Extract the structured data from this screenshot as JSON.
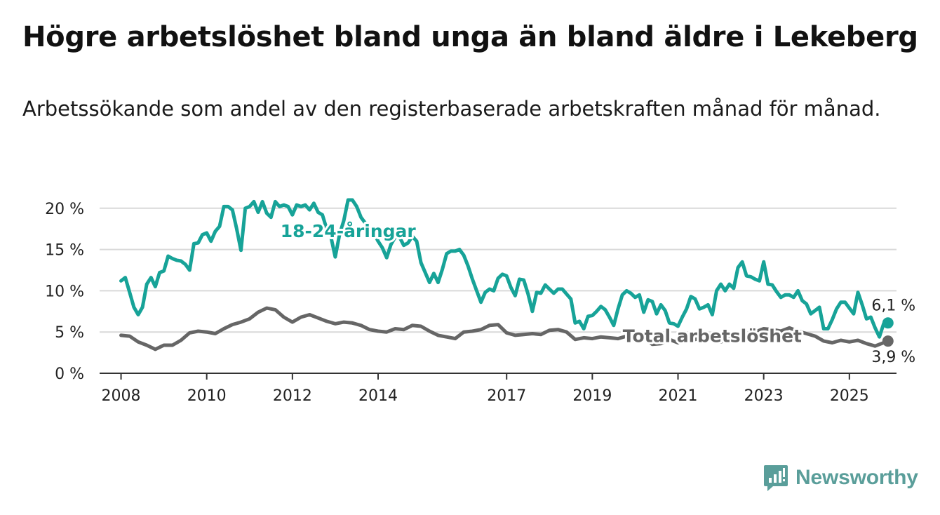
{
  "title": "Högre arbetslöshet bland unga än bland äldre i Lekeberg",
  "subtitle": "Arbetssökande som andel av den registerbaserade arbetskraften månad för månad.",
  "brand": {
    "name": "Newsworthy",
    "icon": "newsworthy-logo-icon"
  },
  "colors": {
    "youth": "#17a398",
    "total": "#666666",
    "grid": "#d9d9d9",
    "axis": "#333333",
    "brand": "#5a9e9a"
  },
  "chart_data": {
    "type": "line",
    "title": "Högre arbetslöshet bland unga än bland äldre i Lekeberg",
    "subtitle": "Arbetssökande som andel av den registerbaserade arbetskraften månad för månad.",
    "x_unit": "year (decimal, monthly observations)",
    "xlim": [
      2007.5,
      2026.1
    ],
    "ylim": [
      0,
      21
    ],
    "y_ticks": [
      0,
      5,
      10,
      15,
      20
    ],
    "y_tick_labels": [
      "0 %",
      "5 %",
      "10 %",
      "15 %",
      "20 %"
    ],
    "x_ticks": [
      2008,
      2010,
      2012,
      2014,
      2017,
      2019,
      2021,
      2023,
      2025
    ],
    "x_tick_labels": [
      "2008",
      "2010",
      "2012",
      "2014",
      "2017",
      "2019",
      "2021",
      "2023",
      "2025"
    ],
    "grid": "horizontal",
    "legend": "none (direct labels)",
    "series": [
      {
        "name": "18-24-åringar",
        "color": "#17a398",
        "label_at": [
          2013.3,
          16.5
        ],
        "end_value_label": "6,1 %",
        "points": [
          [
            2008.0,
            11.2
          ],
          [
            2008.1,
            11.6
          ],
          [
            2008.2,
            9.8
          ],
          [
            2008.3,
            8.0
          ],
          [
            2008.4,
            7.1
          ],
          [
            2008.5,
            8.0
          ],
          [
            2008.6,
            10.8
          ],
          [
            2008.7,
            11.6
          ],
          [
            2008.8,
            10.5
          ],
          [
            2008.9,
            12.2
          ],
          [
            2009.0,
            12.4
          ],
          [
            2009.1,
            14.2
          ],
          [
            2009.2,
            13.9
          ],
          [
            2009.3,
            13.7
          ],
          [
            2009.4,
            13.6
          ],
          [
            2009.5,
            13.2
          ],
          [
            2009.6,
            12.5
          ],
          [
            2009.7,
            15.7
          ],
          [
            2009.8,
            15.8
          ],
          [
            2009.9,
            16.8
          ],
          [
            2010.0,
            17.0
          ],
          [
            2010.1,
            16.0
          ],
          [
            2010.2,
            17.2
          ],
          [
            2010.3,
            17.8
          ],
          [
            2010.4,
            20.2
          ],
          [
            2010.5,
            20.2
          ],
          [
            2010.6,
            19.8
          ],
          [
            2010.7,
            17.5
          ],
          [
            2010.8,
            14.9
          ],
          [
            2010.9,
            20.0
          ],
          [
            2011.0,
            20.2
          ],
          [
            2011.1,
            20.8
          ],
          [
            2011.2,
            19.5
          ],
          [
            2011.3,
            20.8
          ],
          [
            2011.4,
            19.4
          ],
          [
            2011.5,
            18.9
          ],
          [
            2011.6,
            20.8
          ],
          [
            2011.7,
            20.2
          ],
          [
            2011.8,
            20.4
          ],
          [
            2011.9,
            20.2
          ],
          [
            2012.0,
            19.2
          ],
          [
            2012.1,
            20.4
          ],
          [
            2012.2,
            20.2
          ],
          [
            2012.3,
            20.4
          ],
          [
            2012.4,
            19.8
          ],
          [
            2012.5,
            20.6
          ],
          [
            2012.6,
            19.5
          ],
          [
            2012.7,
            19.2
          ],
          [
            2012.8,
            17.5
          ],
          [
            2012.9,
            16.5
          ],
          [
            2013.0,
            14.1
          ],
          [
            2013.1,
            16.8
          ],
          [
            2013.2,
            18.5
          ],
          [
            2013.3,
            21.0
          ],
          [
            2013.4,
            21.0
          ],
          [
            2013.5,
            20.2
          ],
          [
            2013.6,
            18.9
          ],
          [
            2013.7,
            18.2
          ],
          [
            2013.8,
            17.5
          ],
          [
            2013.9,
            17.0
          ],
          [
            2014.0,
            16.0
          ],
          [
            2014.1,
            15.2
          ],
          [
            2014.2,
            14.0
          ],
          [
            2014.3,
            15.6
          ],
          [
            2014.4,
            16.5
          ],
          [
            2014.5,
            16.5
          ],
          [
            2014.6,
            15.5
          ],
          [
            2014.7,
            15.8
          ],
          [
            2014.8,
            16.6
          ],
          [
            2014.9,
            16.0
          ],
          [
            2015.0,
            13.4
          ],
          [
            2015.1,
            12.2
          ],
          [
            2015.2,
            11.0
          ],
          [
            2015.3,
            12.1
          ],
          [
            2015.4,
            11.0
          ],
          [
            2015.5,
            12.6
          ],
          [
            2015.6,
            14.5
          ],
          [
            2015.7,
            14.8
          ],
          [
            2015.8,
            14.8
          ],
          [
            2015.9,
            15.0
          ],
          [
            2016.0,
            14.3
          ],
          [
            2016.1,
            13.0
          ],
          [
            2016.2,
            11.4
          ],
          [
            2016.3,
            10.0
          ],
          [
            2016.4,
            8.6
          ],
          [
            2016.5,
            9.8
          ],
          [
            2016.6,
            10.2
          ],
          [
            2016.7,
            10.0
          ],
          [
            2016.8,
            11.5
          ],
          [
            2016.9,
            12.0
          ],
          [
            2017.0,
            11.8
          ],
          [
            2017.1,
            10.4
          ],
          [
            2017.2,
            9.4
          ],
          [
            2017.3,
            11.4
          ],
          [
            2017.4,
            11.3
          ],
          [
            2017.5,
            9.6
          ],
          [
            2017.6,
            7.5
          ],
          [
            2017.7,
            9.8
          ],
          [
            2017.8,
            9.7
          ],
          [
            2017.9,
            10.7
          ],
          [
            2018.0,
            10.2
          ],
          [
            2018.1,
            9.7
          ],
          [
            2018.2,
            10.2
          ],
          [
            2018.3,
            10.2
          ],
          [
            2018.4,
            9.6
          ],
          [
            2018.5,
            9.0
          ],
          [
            2018.6,
            6.1
          ],
          [
            2018.7,
            6.3
          ],
          [
            2018.8,
            5.4
          ],
          [
            2018.9,
            6.9
          ],
          [
            2019.0,
            7.0
          ],
          [
            2019.1,
            7.5
          ],
          [
            2019.2,
            8.1
          ],
          [
            2019.3,
            7.7
          ],
          [
            2019.4,
            6.8
          ],
          [
            2019.5,
            5.8
          ],
          [
            2019.6,
            7.8
          ],
          [
            2019.7,
            9.5
          ],
          [
            2019.8,
            10.0
          ],
          [
            2019.9,
            9.7
          ],
          [
            2020.0,
            9.2
          ],
          [
            2020.1,
            9.5
          ],
          [
            2020.2,
            7.4
          ],
          [
            2020.3,
            8.9
          ],
          [
            2020.4,
            8.7
          ],
          [
            2020.5,
            7.2
          ],
          [
            2020.6,
            8.3
          ],
          [
            2020.7,
            7.6
          ],
          [
            2020.8,
            6.1
          ],
          [
            2020.9,
            6.0
          ],
          [
            2021.0,
            5.7
          ],
          [
            2021.1,
            6.8
          ],
          [
            2021.2,
            7.8
          ],
          [
            2021.3,
            9.3
          ],
          [
            2021.4,
            9.0
          ],
          [
            2021.5,
            7.8
          ],
          [
            2021.6,
            8.0
          ],
          [
            2021.7,
            8.3
          ],
          [
            2021.8,
            7.1
          ],
          [
            2021.9,
            10.0
          ],
          [
            2022.0,
            10.8
          ],
          [
            2022.1,
            10.0
          ],
          [
            2022.2,
            10.8
          ],
          [
            2022.3,
            10.3
          ],
          [
            2022.4,
            12.8
          ],
          [
            2022.5,
            13.5
          ],
          [
            2022.6,
            11.8
          ],
          [
            2022.7,
            11.7
          ],
          [
            2022.8,
            11.4
          ],
          [
            2022.9,
            11.2
          ],
          [
            2023.0,
            13.5
          ],
          [
            2023.1,
            10.8
          ],
          [
            2023.2,
            10.7
          ],
          [
            2023.3,
            9.9
          ],
          [
            2023.4,
            9.2
          ],
          [
            2023.5,
            9.5
          ],
          [
            2023.6,
            9.5
          ],
          [
            2023.7,
            9.2
          ],
          [
            2023.8,
            10.0
          ],
          [
            2023.9,
            8.8
          ],
          [
            2024.0,
            8.4
          ],
          [
            2024.1,
            7.2
          ],
          [
            2024.2,
            7.6
          ],
          [
            2024.3,
            8.0
          ],
          [
            2024.4,
            5.4
          ],
          [
            2024.5,
            5.4
          ],
          [
            2024.6,
            6.5
          ],
          [
            2024.7,
            7.8
          ],
          [
            2024.8,
            8.6
          ],
          [
            2024.9,
            8.6
          ],
          [
            2025.0,
            7.9
          ],
          [
            2025.1,
            7.2
          ],
          [
            2025.2,
            9.8
          ],
          [
            2025.3,
            8.3
          ],
          [
            2025.4,
            6.6
          ],
          [
            2025.5,
            6.8
          ],
          [
            2025.6,
            5.5
          ],
          [
            2025.7,
            4.4
          ],
          [
            2025.8,
            6.0
          ],
          [
            2025.9,
            6.1
          ]
        ]
      },
      {
        "name": "Total arbetslöshet",
        "color": "#666666",
        "label_at": [
          2021.8,
          3.8
        ],
        "end_value_label": "3,9 %",
        "points": [
          [
            2008.0,
            4.6
          ],
          [
            2008.2,
            4.5
          ],
          [
            2008.4,
            3.8
          ],
          [
            2008.6,
            3.4
          ],
          [
            2008.8,
            2.9
          ],
          [
            2009.0,
            3.4
          ],
          [
            2009.2,
            3.4
          ],
          [
            2009.4,
            4.0
          ],
          [
            2009.6,
            4.9
          ],
          [
            2009.8,
            5.1
          ],
          [
            2010.0,
            5.0
          ],
          [
            2010.2,
            4.8
          ],
          [
            2010.4,
            5.4
          ],
          [
            2010.6,
            5.9
          ],
          [
            2010.8,
            6.2
          ],
          [
            2011.0,
            6.6
          ],
          [
            2011.2,
            7.4
          ],
          [
            2011.4,
            7.9
          ],
          [
            2011.6,
            7.7
          ],
          [
            2011.8,
            6.8
          ],
          [
            2012.0,
            6.2
          ],
          [
            2012.2,
            6.8
          ],
          [
            2012.4,
            7.1
          ],
          [
            2012.6,
            6.7
          ],
          [
            2012.8,
            6.3
          ],
          [
            2013.0,
            6.0
          ],
          [
            2013.2,
            6.2
          ],
          [
            2013.4,
            6.1
          ],
          [
            2013.6,
            5.8
          ],
          [
            2013.8,
            5.3
          ],
          [
            2014.0,
            5.1
          ],
          [
            2014.2,
            5.0
          ],
          [
            2014.4,
            5.4
          ],
          [
            2014.6,
            5.3
          ],
          [
            2014.8,
            5.8
          ],
          [
            2015.0,
            5.7
          ],
          [
            2015.2,
            5.1
          ],
          [
            2015.4,
            4.6
          ],
          [
            2015.6,
            4.4
          ],
          [
            2015.8,
            4.2
          ],
          [
            2016.0,
            5.0
          ],
          [
            2016.2,
            5.1
          ],
          [
            2016.4,
            5.3
          ],
          [
            2016.6,
            5.8
          ],
          [
            2016.8,
            5.9
          ],
          [
            2017.0,
            4.9
          ],
          [
            2017.2,
            4.6
          ],
          [
            2017.4,
            4.7
          ],
          [
            2017.6,
            4.8
          ],
          [
            2017.8,
            4.7
          ],
          [
            2018.0,
            5.2
          ],
          [
            2018.2,
            5.3
          ],
          [
            2018.4,
            5.0
          ],
          [
            2018.6,
            4.1
          ],
          [
            2018.8,
            4.3
          ],
          [
            2019.0,
            4.2
          ],
          [
            2019.2,
            4.4
          ],
          [
            2019.4,
            4.3
          ],
          [
            2019.6,
            4.2
          ],
          [
            2019.8,
            4.5
          ],
          [
            2020.0,
            4.7
          ],
          [
            2020.2,
            4.4
          ],
          [
            2020.4,
            3.5
          ],
          [
            2020.6,
            3.6
          ],
          [
            2020.8,
            4.1
          ],
          [
            2021.0,
            3.7
          ],
          [
            2021.2,
            4.0
          ],
          [
            2021.4,
            4.1
          ],
          [
            2021.6,
            4.3
          ],
          [
            2021.8,
            4.4
          ],
          [
            2022.0,
            3.8
          ],
          [
            2022.2,
            4.2
          ],
          [
            2022.4,
            4.1
          ],
          [
            2022.6,
            4.4
          ],
          [
            2022.8,
            5.0
          ],
          [
            2023.0,
            5.4
          ],
          [
            2023.2,
            5.3
          ],
          [
            2023.4,
            5.1
          ],
          [
            2023.6,
            5.5
          ],
          [
            2023.8,
            5.1
          ],
          [
            2024.0,
            4.8
          ],
          [
            2024.2,
            4.5
          ],
          [
            2024.4,
            3.9
          ],
          [
            2024.6,
            3.7
          ],
          [
            2024.8,
            4.0
          ],
          [
            2025.0,
            3.8
          ],
          [
            2025.2,
            4.0
          ],
          [
            2025.4,
            3.6
          ],
          [
            2025.6,
            3.3
          ],
          [
            2025.9,
            3.9
          ]
        ]
      }
    ]
  }
}
